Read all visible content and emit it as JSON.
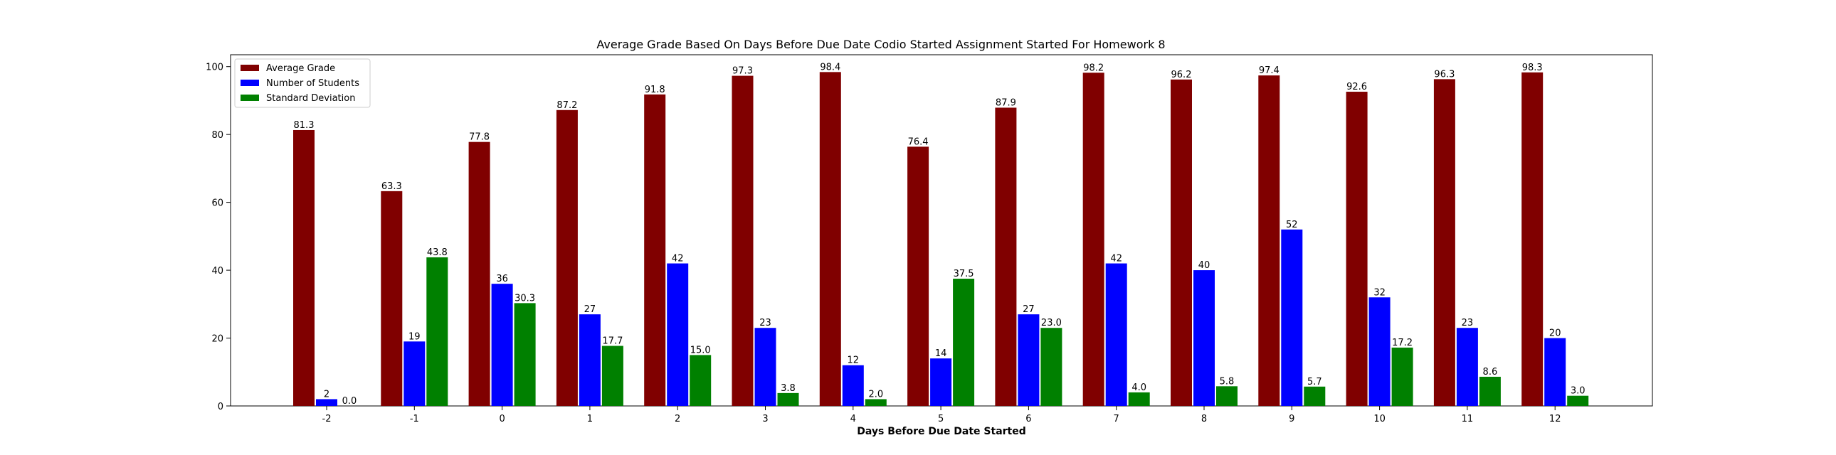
{
  "chart_data": {
    "type": "bar",
    "title": "Average Grade Based On Days Before Due Date Codio Started Assignment Started For Homework 8",
    "xlabel": "Days Before Due Date Started",
    "ylabel": "",
    "ylim": [
      0,
      103.5
    ],
    "yticks": [
      0,
      20,
      40,
      60,
      80,
      100
    ],
    "grid": false,
    "legend_position": "top-left",
    "categories": [
      "-2",
      "-1",
      "0",
      "1",
      "2",
      "3",
      "4",
      "5",
      "6",
      "7",
      "8",
      "9",
      "10",
      "11",
      "12"
    ],
    "series": [
      {
        "name": "Average Grade",
        "color": "#800000",
        "values": [
          81.3,
          63.3,
          77.8,
          87.2,
          91.8,
          97.3,
          98.4,
          76.4,
          87.9,
          98.2,
          96.2,
          97.4,
          92.6,
          96.3,
          98.3
        ],
        "labels": [
          "81.3",
          "63.3",
          "77.8",
          "87.2",
          "91.8",
          "97.3",
          "98.4",
          "76.4",
          "87.9",
          "98.2",
          "96.2",
          "97.4",
          "92.6",
          "96.3",
          "98.3"
        ]
      },
      {
        "name": "Number of Students",
        "color": "#0000ff",
        "values": [
          2,
          19,
          36,
          27,
          42,
          23,
          12,
          14,
          27,
          42,
          40,
          52,
          32,
          23,
          20
        ],
        "labels": [
          "2",
          "19",
          "36",
          "27",
          "42",
          "23",
          "12",
          "14",
          "27",
          "42",
          "40",
          "52",
          "32",
          "23",
          "20"
        ]
      },
      {
        "name": "Standard Deviation",
        "color": "#008000",
        "values": [
          0.0,
          43.8,
          30.3,
          17.7,
          15.0,
          3.8,
          2.0,
          37.5,
          23.0,
          4.0,
          5.8,
          5.7,
          17.2,
          8.6,
          3.0
        ],
        "labels": [
          "0.0",
          "43.8",
          "30.3",
          "17.7",
          "15.0",
          "3.8",
          "2.0",
          "37.5",
          "23.0",
          "4.0",
          "5.8",
          "5.7",
          "17.2",
          "8.6",
          "3.0"
        ]
      }
    ]
  }
}
